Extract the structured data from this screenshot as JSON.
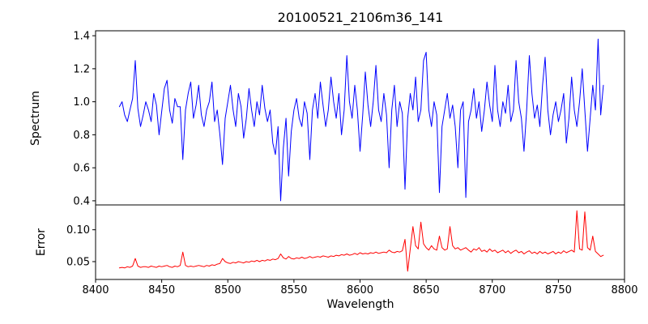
{
  "chart_data": {
    "type": "line",
    "title": "20100521_2106m36_141",
    "xlabel": "Wavelength",
    "grid": false,
    "legend": null,
    "xlim": [
      8400,
      8800
    ],
    "xtick_values": [
      8400,
      8450,
      8500,
      8550,
      8600,
      8650,
      8700,
      8750,
      8800
    ],
    "xtick_labels": [
      "8400",
      "8450",
      "8500",
      "8550",
      "8600",
      "8650",
      "8700",
      "8750",
      "8800"
    ],
    "x": [
      8418,
      8420,
      8422,
      8424,
      8426,
      8428,
      8430,
      8432,
      8434,
      8436,
      8438,
      8440,
      8442,
      8444,
      8446,
      8448,
      8450,
      8452,
      8454,
      8456,
      8458,
      8460,
      8462,
      8464,
      8466,
      8468,
      8470,
      8472,
      8474,
      8476,
      8478,
      8480,
      8482,
      8484,
      8486,
      8488,
      8490,
      8492,
      8494,
      8496,
      8498,
      8500,
      8502,
      8504,
      8506,
      8508,
      8510,
      8512,
      8514,
      8516,
      8518,
      8520,
      8522,
      8524,
      8526,
      8528,
      8530,
      8532,
      8534,
      8536,
      8538,
      8540,
      8542,
      8544,
      8546,
      8548,
      8550,
      8552,
      8554,
      8556,
      8558,
      8560,
      8562,
      8564,
      8566,
      8568,
      8570,
      8572,
      8574,
      8576,
      8578,
      8580,
      8582,
      8584,
      8586,
      8588,
      8590,
      8592,
      8594,
      8596,
      8598,
      8600,
      8602,
      8604,
      8606,
      8608,
      8610,
      8612,
      8614,
      8616,
      8618,
      8620,
      8622,
      8624,
      8626,
      8628,
      8630,
      8632,
      8634,
      8636,
      8638,
      8640,
      8642,
      8644,
      8646,
      8648,
      8650,
      8652,
      8654,
      8656,
      8658,
      8660,
      8662,
      8664,
      8666,
      8668,
      8670,
      8672,
      8674,
      8676,
      8678,
      8680,
      8682,
      8684,
      8686,
      8688,
      8690,
      8692,
      8694,
      8696,
      8698,
      8700,
      8702,
      8704,
      8706,
      8708,
      8710,
      8712,
      8714,
      8716,
      8718,
      8720,
      8722,
      8724,
      8726,
      8728,
      8730,
      8732,
      8734,
      8736,
      8738,
      8740,
      8742,
      8744,
      8746,
      8748,
      8750,
      8752,
      8754,
      8756,
      8758,
      8760,
      8762,
      8764,
      8766,
      8768,
      8770,
      8772,
      8774,
      8776,
      8778,
      8780,
      8782,
      8784
    ],
    "subplots": [
      {
        "name": "Spectrum",
        "ylabel": "Spectrum",
        "color": "#0000ff",
        "ylim": [
          0.375,
          1.43
        ],
        "ytick_values": [
          0.4,
          0.6,
          0.8,
          1.0,
          1.2,
          1.4
        ],
        "ytick_labels": [
          "0.4",
          "0.6",
          "0.8",
          "1.0",
          "1.2",
          "1.4"
        ],
        "values": [
          0.97,
          1.0,
          0.92,
          0.88,
          0.95,
          1.02,
          1.25,
          0.96,
          0.85,
          0.92,
          1.0,
          0.95,
          0.88,
          1.05,
          0.98,
          0.8,
          0.94,
          1.08,
          1.13,
          0.95,
          0.87,
          1.02,
          0.97,
          0.97,
          0.65,
          0.95,
          1.05,
          1.12,
          0.9,
          0.98,
          1.1,
          0.92,
          0.85,
          0.95,
          1.0,
          1.12,
          0.88,
          0.95,
          0.8,
          0.62,
          0.9,
          1.0,
          1.1,
          0.95,
          0.85,
          1.05,
          0.97,
          0.78,
          0.9,
          1.08,
          0.95,
          0.85,
          1.0,
          0.92,
          1.1,
          0.96,
          0.88,
          0.95,
          0.75,
          0.68,
          0.85,
          0.4,
          0.72,
          0.9,
          0.55,
          0.82,
          0.95,
          1.02,
          0.9,
          0.85,
          1.0,
          0.93,
          0.65,
          0.95,
          1.05,
          0.9,
          1.12,
          0.98,
          0.85,
          0.95,
          1.15,
          1.0,
          0.9,
          1.05,
          0.8,
          0.95,
          1.28,
          1.0,
          0.9,
          1.1,
          0.95,
          0.7,
          0.92,
          1.18,
          0.98,
          0.85,
          1.0,
          1.22,
          0.95,
          0.88,
          1.05,
          0.92,
          0.6,
          0.95,
          1.1,
          0.85,
          1.0,
          0.93,
          0.47,
          0.9,
          1.05,
          0.95,
          1.15,
          0.88,
          0.95,
          1.25,
          1.3,
          0.95,
          0.85,
          1.0,
          0.92,
          0.45,
          0.85,
          0.95,
          1.05,
          0.9,
          0.98,
          0.85,
          0.6,
          0.95,
          1.0,
          0.42,
          0.88,
          0.95,
          1.08,
          0.9,
          1.0,
          0.82,
          0.95,
          1.12,
          0.98,
          0.88,
          1.22,
          0.95,
          0.85,
          1.0,
          0.93,
          1.1,
          0.88,
          0.95,
          1.25,
          1.0,
          0.9,
          0.7,
          0.95,
          1.28,
          1.05,
          0.9,
          0.98,
          0.85,
          1.1,
          1.27,
          0.95,
          0.8,
          0.92,
          1.0,
          0.88,
          0.95,
          1.05,
          0.75,
          0.9,
          1.15,
          0.95,
          0.85,
          1.0,
          1.2,
          0.95,
          0.7,
          0.9,
          1.1,
          0.95,
          1.38,
          0.92,
          1.1
        ]
      },
      {
        "name": "Error",
        "ylabel": "Error",
        "color": "#ff0000",
        "ylim": [
          0.022,
          0.139
        ],
        "ytick_values": [
          0.05,
          0.1
        ],
        "ytick_labels": [
          "0.05",
          "0.10"
        ],
        "values": [
          0.04,
          0.041,
          0.04,
          0.042,
          0.041,
          0.043,
          0.055,
          0.043,
          0.041,
          0.042,
          0.042,
          0.041,
          0.043,
          0.042,
          0.041,
          0.043,
          0.042,
          0.043,
          0.044,
          0.042,
          0.041,
          0.043,
          0.042,
          0.044,
          0.065,
          0.044,
          0.042,
          0.043,
          0.042,
          0.043,
          0.044,
          0.043,
          0.042,
          0.044,
          0.043,
          0.045,
          0.044,
          0.046,
          0.047,
          0.055,
          0.05,
          0.048,
          0.047,
          0.049,
          0.048,
          0.05,
          0.049,
          0.048,
          0.05,
          0.049,
          0.051,
          0.05,
          0.052,
          0.05,
          0.052,
          0.051,
          0.053,
          0.052,
          0.054,
          0.053,
          0.055,
          0.062,
          0.056,
          0.054,
          0.058,
          0.055,
          0.054,
          0.056,
          0.055,
          0.057,
          0.055,
          0.056,
          0.058,
          0.056,
          0.057,
          0.058,
          0.057,
          0.059,
          0.058,
          0.057,
          0.059,
          0.058,
          0.06,
          0.059,
          0.061,
          0.06,
          0.062,
          0.06,
          0.061,
          0.063,
          0.061,
          0.064,
          0.062,
          0.063,
          0.062,
          0.064,
          0.063,
          0.065,
          0.063,
          0.064,
          0.065,
          0.064,
          0.068,
          0.065,
          0.064,
          0.066,
          0.065,
          0.067,
          0.085,
          0.035,
          0.07,
          0.105,
          0.075,
          0.07,
          0.112,
          0.078,
          0.072,
          0.068,
          0.075,
          0.07,
          0.068,
          0.09,
          0.072,
          0.068,
          0.07,
          0.105,
          0.075,
          0.07,
          0.072,
          0.068,
          0.07,
          0.072,
          0.068,
          0.065,
          0.07,
          0.068,
          0.072,
          0.066,
          0.068,
          0.065,
          0.07,
          0.066,
          0.068,
          0.064,
          0.066,
          0.068,
          0.064,
          0.067,
          0.063,
          0.066,
          0.068,
          0.064,
          0.066,
          0.062,
          0.065,
          0.067,
          0.063,
          0.065,
          0.062,
          0.066,
          0.063,
          0.065,
          0.062,
          0.064,
          0.066,
          0.062,
          0.065,
          0.063,
          0.067,
          0.064,
          0.066,
          0.068,
          0.065,
          0.13,
          0.07,
          0.068,
          0.128,
          0.072,
          0.068,
          0.09,
          0.066,
          0.062,
          0.058,
          0.06
        ]
      }
    ]
  }
}
